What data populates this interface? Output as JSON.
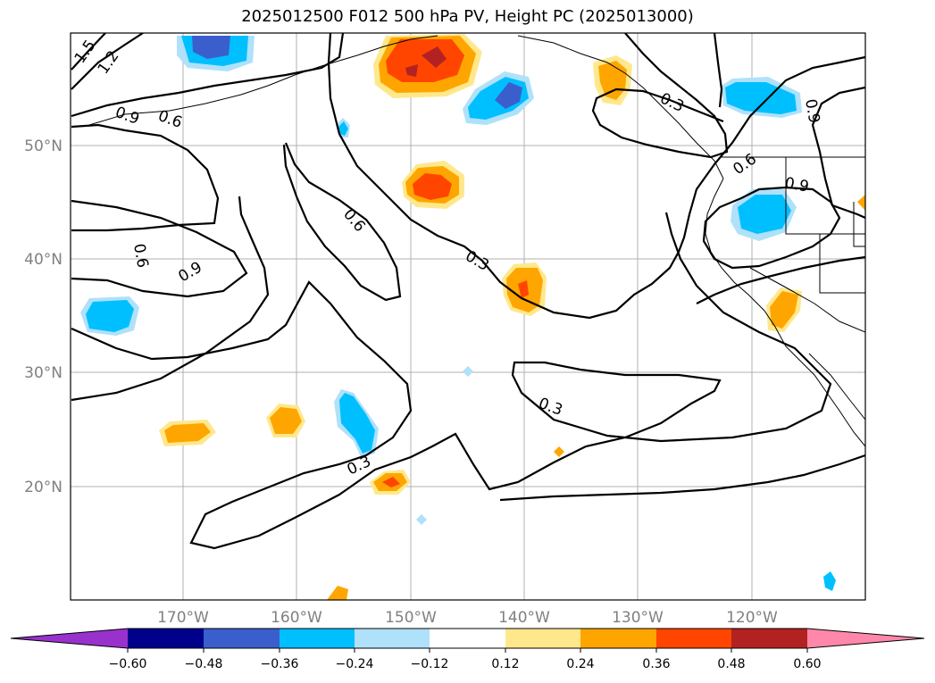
{
  "title": "2025012500 F012 500 hPa PV, Height PC (2025013000)",
  "map": {
    "lat_labels": [
      "50°N",
      "40°N",
      "30°N",
      "20°N"
    ],
    "lon_labels": [
      "170°W",
      "160°W",
      "150°W",
      "140°W",
      "130°W",
      "120°W"
    ],
    "contour_labels": [
      "1.5",
      "1.2",
      "0.9",
      "0.6",
      "0.6",
      "0.9",
      "0.6",
      "0.3",
      "0.3",
      "0.3",
      "0.3",
      "0.6",
      "0.9",
      "0.9"
    ]
  },
  "colorbar": {
    "tick_labels": [
      "−0.60",
      "−0.48",
      "−0.36",
      "−0.24",
      "−0.12",
      "0.12",
      "0.24",
      "0.36",
      "0.48",
      "0.60"
    ],
    "colors": [
      "#9932cc",
      "#00008b",
      "#3a5fcd",
      "#00bfff",
      "#afe1fa",
      "#ffffff",
      "#ffe88c",
      "#ffa500",
      "#ff4500",
      "#b22222",
      "#ff88aa"
    ]
  }
}
